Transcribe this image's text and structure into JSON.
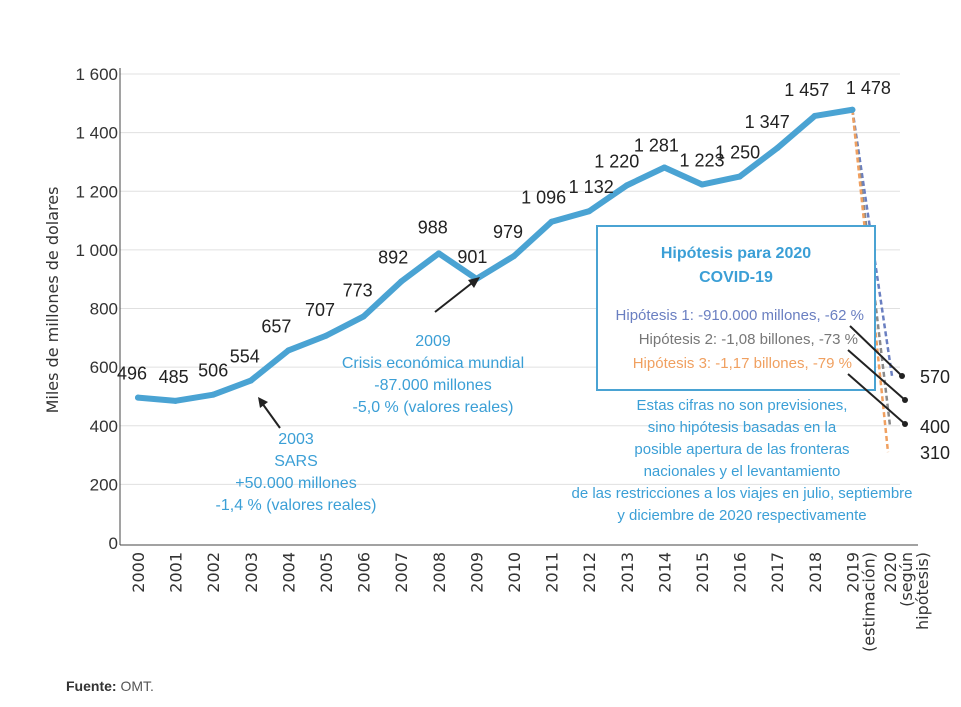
{
  "chart_data": {
    "type": "line",
    "ylabel": "Miles de millones de dolares",
    "ylim": [
      0,
      1600
    ],
    "yticks": [
      0,
      200,
      400,
      600,
      800,
      1000,
      1200,
      1400,
      1600
    ],
    "ytick_labels": [
      "0",
      "200",
      "400",
      "600",
      "800",
      "1 000",
      "1 200",
      "1 400",
      "1 600"
    ],
    "x_labels": [
      "2000",
      "2001",
      "2002",
      "2003",
      "2004",
      "2005",
      "2006",
      "2007",
      "2008",
      "2009",
      "2010",
      "2011",
      "2012",
      "2013",
      "2014",
      "2015",
      "2016",
      "2017",
      "2018",
      "2019 (estimación)",
      "2020 (según hipótesis)"
    ],
    "x_label_lines": [
      [
        "2000"
      ],
      [
        "2001"
      ],
      [
        "2002"
      ],
      [
        "2003"
      ],
      [
        "2004"
      ],
      [
        "2005"
      ],
      [
        "2006"
      ],
      [
        "2007"
      ],
      [
        "2008"
      ],
      [
        "2009"
      ],
      [
        "2010"
      ],
      [
        "2011"
      ],
      [
        "2012"
      ],
      [
        "2013"
      ],
      [
        "2014"
      ],
      [
        "2015"
      ],
      [
        "2016"
      ],
      [
        "2017"
      ],
      [
        "2018"
      ],
      [
        "2019",
        "(estimación)"
      ],
      [
        "2020",
        "(según",
        "hipótesis)"
      ]
    ],
    "grid": "horizontal",
    "main_series": {
      "values": [
        496,
        485,
        506,
        554,
        657,
        707,
        773,
        892,
        988,
        901,
        979,
        1096,
        1132,
        1220,
        1281,
        1223,
        1250,
        1347,
        1457,
        1478
      ],
      "labels": [
        "496",
        "485",
        "506",
        "554",
        "657",
        "707",
        "773",
        "892",
        "988",
        "901",
        "979",
        "1 096",
        "1 132",
        "1 220",
        "1 281",
        "1 223",
        "1 250",
        "1 347",
        "1 457",
        "1 478"
      ],
      "color": "#4aa3d3"
    },
    "hypotheses": [
      {
        "value": 570,
        "label": "570",
        "color": "#6a7fc1"
      },
      {
        "value": 400,
        "label": "400",
        "color": "#8a8a8a"
      },
      {
        "value": 310,
        "label": "310",
        "color": "#f0a060"
      }
    ],
    "annotations": {
      "sars": [
        "2003",
        "SARS",
        "+50.000 millones",
        "-1,4 % (valores reales)"
      ],
      "crisis": [
        "2009",
        "Crisis económica mundial",
        "-87.000 millones",
        "-5,0 % (valores reales)"
      ]
    },
    "hypothesis_box": {
      "title_lines": [
        "Hipótesis para 2020",
        "COVID-19"
      ],
      "lines": [
        {
          "text": "Hipótesis 1: -910.000 millones, -62 %",
          "color": "#6a7fc1"
        },
        {
          "text": "Hipótesis 2: -1,08 billones, -73 %",
          "color": "#777777"
        },
        {
          "text": "Hipótesis 3: -1,17 billones, -79 %",
          "color": "#f0a060"
        }
      ]
    },
    "note_lines": [
      "Estas cifras no son previsiones,",
      "sino hipótesis basadas en la",
      "posible apertura de las fronteras",
      "nacionales y el levantamiento",
      "de las restricciones a los viajes en julio, septiembre",
      "y diciembre de 2020 respectivamente"
    ],
    "colors": {
      "line": "#4aa3d3",
      "annotation": "#3b9fd6",
      "axis_text": "#333333",
      "grid": "#e0e0e0"
    }
  },
  "source": {
    "label": "Fuente:",
    "text": "OMT."
  }
}
